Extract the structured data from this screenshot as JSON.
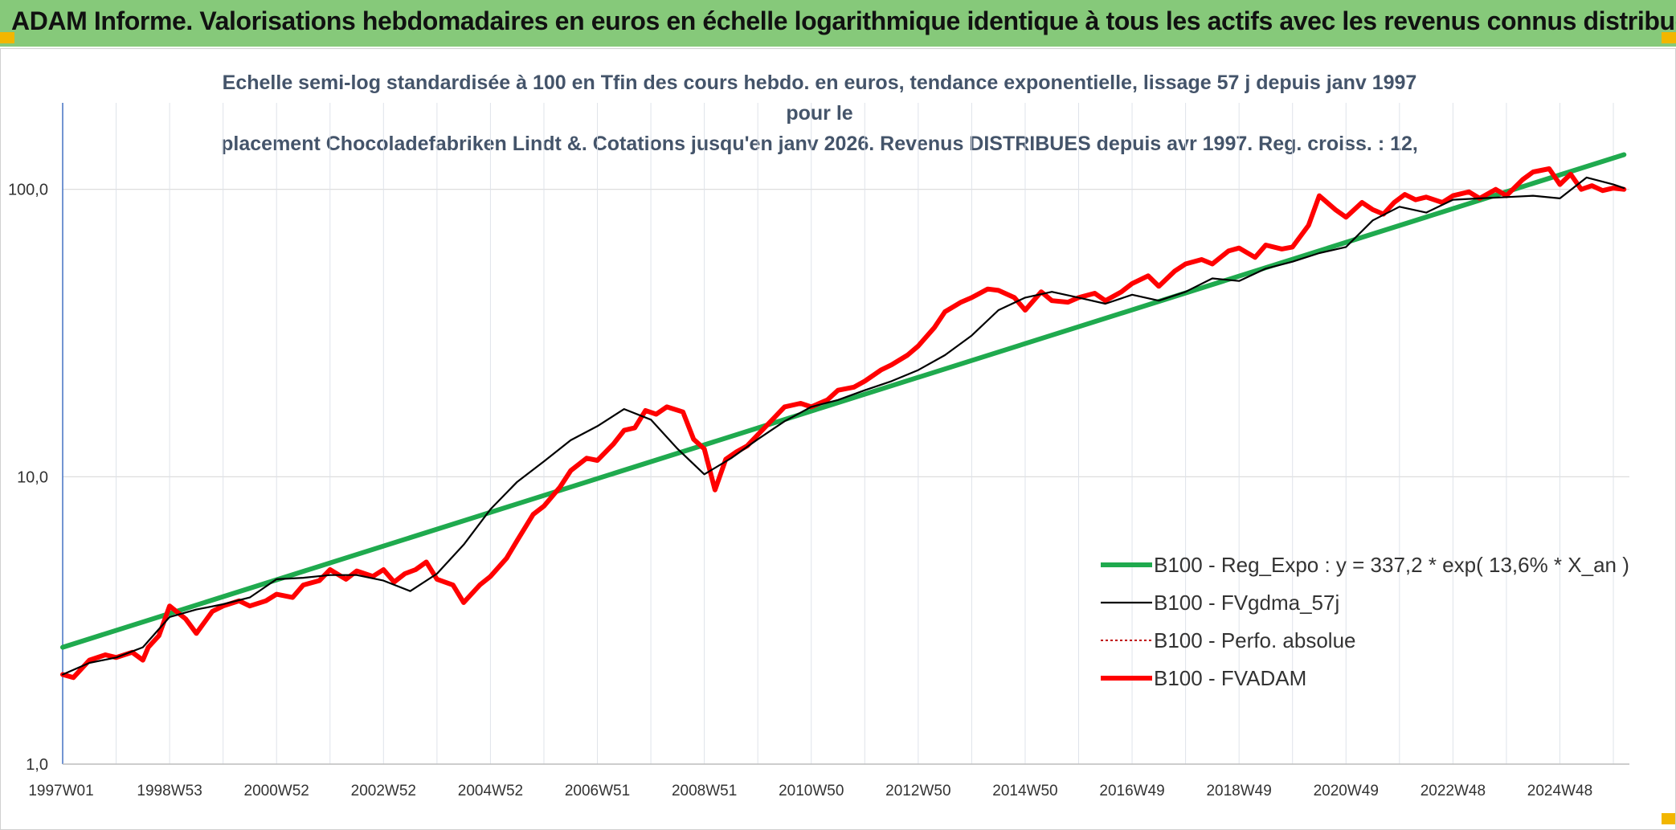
{
  "header": {
    "title": "ADAM Informe. Valorisations hebdomadaires en euros en échelle logarithmique identique à tous les actifs avec les revenus connus distribués"
  },
  "chart_data": {
    "type": "line",
    "y_scale": "log",
    "title_line1": "Echelle semi-log standardisée à 100 en Tfin des cours hebdo. en euros, tendance exponentielle, lissage 57 j depuis janv 1997 pour le",
    "title_line2": "placement Chocoladefabriken Lindt &. Cotations jusqu'en janv 2026. Revenus DISTRIBUES depuis avr 1997. Reg. croiss. : 12,",
    "ylim": [
      1,
      200
    ],
    "xlim": [
      1997.0,
      2026.3
    ],
    "y_ticks": [
      {
        "value": 1,
        "label": "1,0"
      },
      {
        "value": 10,
        "label": "10,0"
      },
      {
        "value": 100,
        "label": "100,0"
      }
    ],
    "x_ticks": [
      {
        "value": 1997.0,
        "label": "1997W01"
      },
      {
        "value": 1999.0,
        "label": "1998W53"
      },
      {
        "value": 2001.0,
        "label": "2000W52"
      },
      {
        "value": 2003.0,
        "label": "2002W52"
      },
      {
        "value": 2005.0,
        "label": "2004W52"
      },
      {
        "value": 2007.0,
        "label": "2006W51"
      },
      {
        "value": 2009.0,
        "label": "2008W51"
      },
      {
        "value": 2011.0,
        "label": "2010W50"
      },
      {
        "value": 2013.0,
        "label": "2012W50"
      },
      {
        "value": 2015.0,
        "label": "2014W50"
      },
      {
        "value": 2017.0,
        "label": "2016W49"
      },
      {
        "value": 2019.0,
        "label": "2018W49"
      },
      {
        "value": 2021.0,
        "label": "2020W49"
      },
      {
        "value": 2023.0,
        "label": "2022W48"
      },
      {
        "value": 2025.0,
        "label": "2024W48"
      }
    ],
    "grid": true,
    "legend_position": "bottom-right",
    "series": [
      {
        "name": "B100 - Reg_Expo : y = 337,2 * exp( 13,6% *  X_an )",
        "color": "#1faa4e",
        "style": "solid-thick",
        "x": [
          1997.0,
          2026.2
        ],
        "y": [
          2.55,
          132
        ]
      },
      {
        "name": "B100 - FVgdma_57j",
        "color": "#000000",
        "style": "solid",
        "x": [
          1997.0,
          1997.5,
          1998.0,
          1998.5,
          1999.0,
          1999.5,
          2000.0,
          2000.5,
          2001.0,
          2001.5,
          2002.0,
          2002.5,
          2003.0,
          2003.5,
          2004.0,
          2004.5,
          2005.0,
          2005.5,
          2006.0,
          2006.5,
          2007.0,
          2007.5,
          2008.0,
          2008.5,
          2009.0,
          2009.5,
          2010.0,
          2010.5,
          2011.0,
          2011.5,
          2012.0,
          2012.5,
          2013.0,
          2013.5,
          2014.0,
          2014.5,
          2015.0,
          2015.5,
          2016.0,
          2016.5,
          2017.0,
          2017.5,
          2018.0,
          2018.5,
          2019.0,
          2019.5,
          2020.0,
          2020.5,
          2021.0,
          2021.5,
          2022.0,
          2022.5,
          2023.0,
          2023.5,
          2024.0,
          2024.5,
          2025.0,
          2025.5,
          2026.0,
          2026.2
        ],
        "y": [
          2.05,
          2.25,
          2.35,
          2.55,
          3.25,
          3.45,
          3.6,
          3.8,
          4.4,
          4.45,
          4.55,
          4.55,
          4.35,
          4.0,
          4.6,
          5.8,
          7.7,
          9.6,
          11.3,
          13.4,
          15.0,
          17.2,
          15.8,
          12.5,
          10.2,
          11.6,
          13.5,
          15.6,
          17.5,
          18.5,
          20.0,
          21.5,
          23.5,
          26.5,
          31.0,
          38.0,
          42.0,
          44.0,
          42.0,
          40.0,
          43.0,
          41.0,
          44.0,
          49.0,
          48.0,
          53.0,
          56.0,
          60.0,
          63.0,
          78.0,
          87.0,
          83.0,
          92.0,
          93.0,
          94.0,
          95.0,
          93.0,
          110.0,
          104.0,
          101.0
        ]
      },
      {
        "name": "B100 - Perfo. absolue",
        "color": "#c00000",
        "style": "dotted",
        "x": [],
        "y": []
      },
      {
        "name": "B100 - FVADAM",
        "color": "#ff0000",
        "style": "solid-thick",
        "x": [
          1997.0,
          1997.2,
          1997.5,
          1997.8,
          1998.0,
          1998.3,
          1998.5,
          1998.6,
          1998.8,
          1999.0,
          1999.3,
          1999.5,
          1999.8,
          2000.0,
          2000.3,
          2000.5,
          2000.8,
          2001.0,
          2001.3,
          2001.5,
          2001.8,
          2002.0,
          2002.3,
          2002.5,
          2002.8,
          2003.0,
          2003.2,
          2003.4,
          2003.6,
          2003.8,
          2004.0,
          2004.3,
          2004.5,
          2004.8,
          2005.0,
          2005.3,
          2005.5,
          2005.8,
          2006.0,
          2006.3,
          2006.5,
          2006.8,
          2007.0,
          2007.3,
          2007.5,
          2007.7,
          2007.9,
          2008.1,
          2008.3,
          2008.6,
          2008.8,
          2009.0,
          2009.2,
          2009.4,
          2009.6,
          2009.8,
          2010.0,
          2010.3,
          2010.5,
          2010.8,
          2011.0,
          2011.3,
          2011.5,
          2011.8,
          2012.0,
          2012.3,
          2012.5,
          2012.8,
          2013.0,
          2013.3,
          2013.5,
          2013.8,
          2014.0,
          2014.3,
          2014.5,
          2014.8,
          2015.0,
          2015.3,
          2015.5,
          2015.8,
          2016.0,
          2016.3,
          2016.5,
          2016.8,
          2017.0,
          2017.3,
          2017.5,
          2017.8,
          2018.0,
          2018.3,
          2018.5,
          2018.8,
          2019.0,
          2019.3,
          2019.5,
          2019.8,
          2020.0,
          2020.3,
          2020.5,
          2020.8,
          2021.0,
          2021.3,
          2021.5,
          2021.7,
          2021.9,
          2022.1,
          2022.3,
          2022.5,
          2022.8,
          2023.0,
          2023.3,
          2023.5,
          2023.8,
          2024.0,
          2024.3,
          2024.5,
          2024.8,
          2025.0,
          2025.2,
          2025.4,
          2025.6,
          2025.8,
          2026.0,
          2026.2
        ],
        "y": [
          2.05,
          2.0,
          2.3,
          2.4,
          2.35,
          2.45,
          2.3,
          2.55,
          2.8,
          3.55,
          3.2,
          2.85,
          3.4,
          3.55,
          3.7,
          3.55,
          3.7,
          3.9,
          3.8,
          4.2,
          4.35,
          4.75,
          4.4,
          4.7,
          4.5,
          4.75,
          4.3,
          4.6,
          4.75,
          5.05,
          4.4,
          4.2,
          3.65,
          4.2,
          4.5,
          5.2,
          6.0,
          7.4,
          7.9,
          9.2,
          10.5,
          11.6,
          11.4,
          13.0,
          14.5,
          14.8,
          17.0,
          16.5,
          17.5,
          16.8,
          13.5,
          12.5,
          9.0,
          11.5,
          12.2,
          12.8,
          14.0,
          16.0,
          17.5,
          18.0,
          17.5,
          18.5,
          20.0,
          20.5,
          21.5,
          23.5,
          24.5,
          26.5,
          28.5,
          33.0,
          37.5,
          40.5,
          42.0,
          45.0,
          44.5,
          42.0,
          38.0,
          44.0,
          41.0,
          40.5,
          42.0,
          43.5,
          41.0,
          44.0,
          47.0,
          50.0,
          46.0,
          52.0,
          55.0,
          57.0,
          55.0,
          61.0,
          62.5,
          58.0,
          64.0,
          62.0,
          63.0,
          75.0,
          95.0,
          85.0,
          80.0,
          90.0,
          85.0,
          82.0,
          90.0,
          96.0,
          92.0,
          94.0,
          90.0,
          95.0,
          98.0,
          93.0,
          100.0,
          95.0,
          108.0,
          115.0,
          118.0,
          104.0,
          113.0,
          100.0,
          103.0,
          99.0,
          101.0,
          100.0
        ]
      }
    ]
  }
}
